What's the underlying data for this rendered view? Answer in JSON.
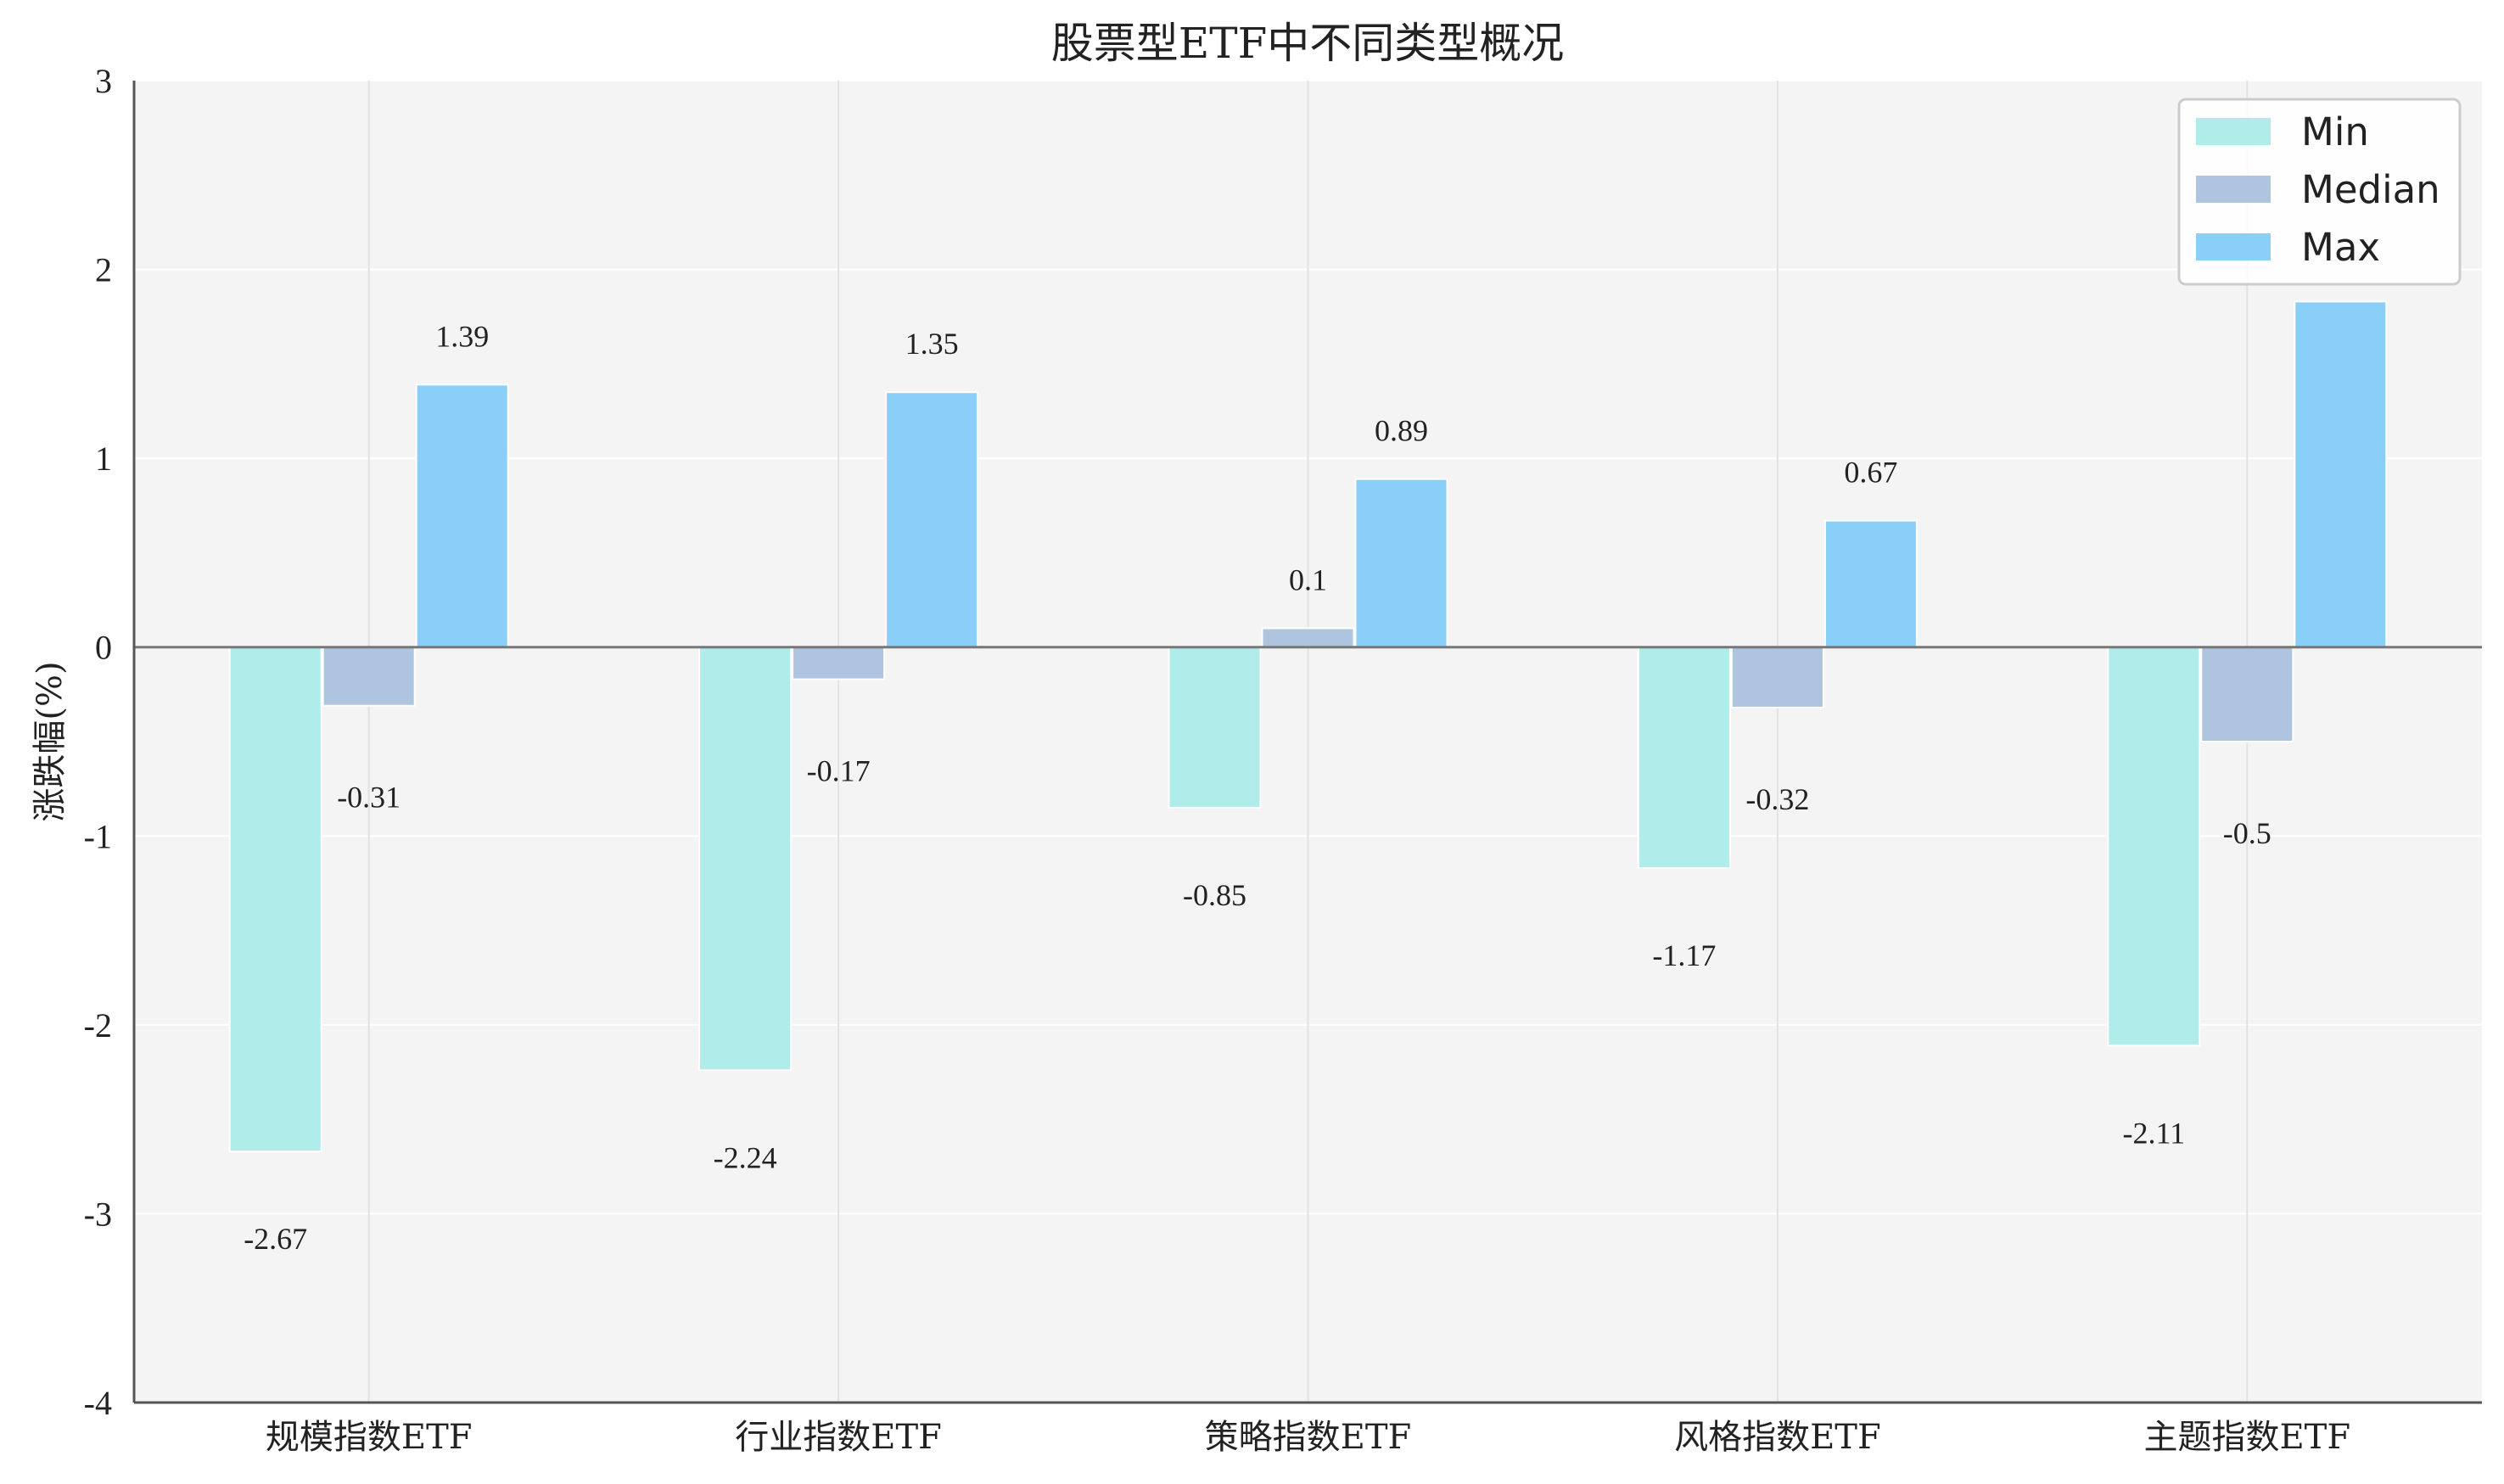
{
  "chart_data": {
    "type": "bar",
    "title": "股票型ETF中不同类型概况",
    "ylabel": "涨跌幅(%)",
    "xlabel": "",
    "ylim": [
      -4,
      3
    ],
    "yticks": [
      3,
      2,
      1,
      0,
      -1,
      -2,
      -3,
      -4
    ],
    "categories": [
      "规模指数ETF",
      "行业指数ETF",
      "策略指数ETF",
      "风格指数ETF",
      "主题指数ETF"
    ],
    "series": [
      {
        "name": "Min",
        "color": "#afecea",
        "values": [
          -2.67,
          -2.24,
          -0.85,
          -1.17,
          -2.11
        ],
        "labels": [
          "-2.67",
          "-2.24",
          "-0.85",
          "-1.17",
          "-2.11"
        ]
      },
      {
        "name": "Median",
        "color": "#afc4df",
        "values": [
          -0.31,
          -0.17,
          0.1,
          -0.32,
          -0.5
        ],
        "labels": [
          "-0.31",
          "-0.17",
          "0.1",
          "-0.32",
          "-0.5"
        ]
      },
      {
        "name": "Max",
        "color": "#8acff7",
        "values": [
          1.39,
          1.35,
          0.89,
          0.67,
          1.83
        ],
        "labels": [
          "1.39",
          "1.35",
          "0.89",
          "0.67",
          ""
        ]
      }
    ],
    "grid": true,
    "legend_position": "top-right",
    "plot_background": "#f4f4f4"
  }
}
